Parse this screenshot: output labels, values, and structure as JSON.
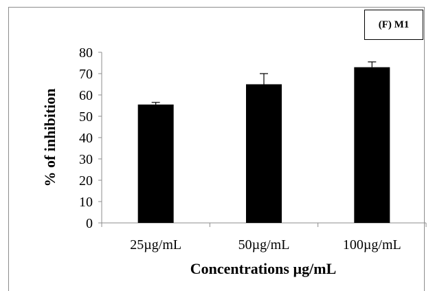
{
  "chart_data": {
    "type": "bar",
    "panel_label": "(F) M1",
    "categories": [
      "25µg/mL",
      "50µg/mL",
      "100µg/mL"
    ],
    "values": [
      55.5,
      65,
      73
    ],
    "error_plus": [
      1,
      5,
      2.5
    ],
    "xlabel": "Concentrations µg/mL",
    "ylabel": "% of inhibition",
    "ylim": [
      0,
      80
    ],
    "yticks": [
      0,
      10,
      20,
      30,
      40,
      50,
      60,
      70,
      80
    ],
    "grid": false,
    "legend": "none",
    "bar_color": "#000000"
  }
}
